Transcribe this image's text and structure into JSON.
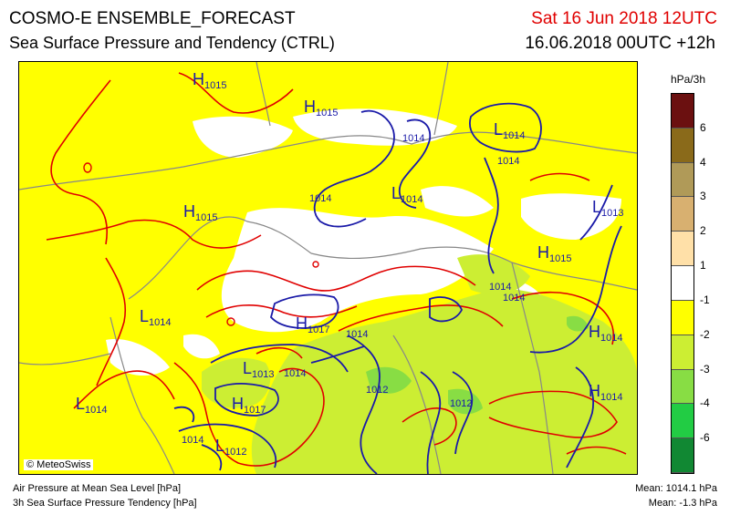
{
  "header": {
    "title": "COSMO-E ENSEMBLE_FORECAST",
    "subtitle": "Sea Surface Pressure and Tendency (CTRL)",
    "valid_date": "Sat 16 Jun 2018 12UTC",
    "run": "16.06.2018 00UTC +12h"
  },
  "colorbar": {
    "unit": "hPa/3h",
    "ticks": [
      "6",
      "4",
      "3",
      "2",
      "1",
      "-1",
      "-2",
      "-3",
      "-4",
      "-6"
    ],
    "colors": [
      "#6b1010",
      "#8a6a1a",
      "#b09a58",
      "#d8b070",
      "#ffe0a8",
      "#ffffff",
      "#ffff00",
      "#ccee33",
      "#88dd44",
      "#22cc44",
      "#118833"
    ]
  },
  "map": {
    "labels": [
      {
        "letter": "H",
        "value": "1015"
      },
      {
        "letter": "H",
        "value": "1015"
      },
      {
        "letter": "H",
        "value": "1015"
      },
      {
        "letter": "H",
        "value": "1015"
      },
      {
        "letter": "H",
        "value": "1017"
      },
      {
        "letter": "H",
        "value": "1017"
      },
      {
        "letter": "H",
        "value": "1014"
      },
      {
        "letter": "H",
        "value": "1014"
      },
      {
        "letter": "L",
        "value": "1014"
      },
      {
        "letter": "L",
        "value": "1014"
      },
      {
        "letter": "L",
        "value": "1014"
      },
      {
        "letter": "L",
        "value": "1014"
      },
      {
        "letter": "L",
        "value": "1013"
      },
      {
        "letter": "L",
        "value": "1013"
      },
      {
        "letter": "L",
        "value": "1012"
      }
    ],
    "isobar_labels": [
      "1014",
      "1014",
      "1014",
      "1014",
      "1014",
      "1014",
      "1014",
      "1012",
      "1012",
      "1014"
    ],
    "credit": "© MeteoSwiss",
    "colors": {
      "isobar": "#1a1aa8",
      "tendency": "#e00000",
      "border": "#888888"
    }
  },
  "footer": {
    "legend1": "Air Pressure at Mean Sea Level [hPa]",
    "legend2": "3h Sea Surface Pressure Tendency [hPa]",
    "mean1": "Mean: 1014.1 hPa",
    "mean2": "Mean:   -1.3 hPa"
  }
}
